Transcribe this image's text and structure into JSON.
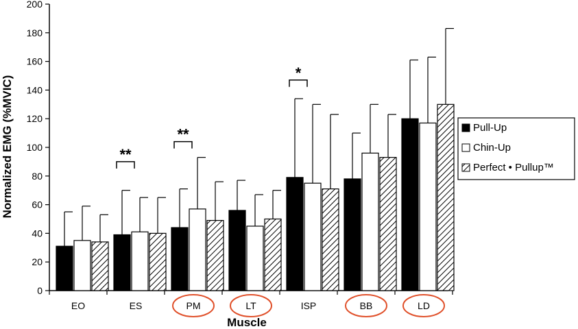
{
  "chart_data": {
    "type": "bar",
    "title": "",
    "xlabel": "Muscle",
    "ylabel": "Normalized EMG (%MVIC)",
    "ylim": [
      0,
      200
    ],
    "yticks": [
      "0",
      "20",
      "40",
      "60",
      "80",
      "100",
      "120",
      "140",
      "160",
      "180",
      "200"
    ],
    "categories": [
      "EO",
      "ES",
      "PM",
      "LT",
      "ISP",
      "BB",
      "LD"
    ],
    "highlighted_categories": [
      "PM",
      "LT",
      "BB",
      "LD"
    ],
    "highlight_color": "#e0502a",
    "series": [
      {
        "name": "Pull-Up",
        "fill": "solid-black",
        "values": [
          31,
          39,
          44,
          56,
          79,
          78,
          120
        ],
        "error": [
          24,
          31,
          27,
          21,
          55,
          32,
          41
        ]
      },
      {
        "name": "Chin-Up",
        "fill": "white",
        "values": [
          35,
          41,
          57,
          45,
          75,
          96,
          117
        ],
        "error": [
          24,
          24,
          36,
          22,
          55,
          34,
          46
        ]
      },
      {
        "name": "Perfect • Pullup™",
        "fill": "diagonal-hatch",
        "values": [
          34,
          40,
          49,
          50,
          71,
          93,
          130
        ],
        "error": [
          19,
          25,
          27,
          20,
          52,
          30,
          53
        ]
      }
    ],
    "significance": [
      {
        "category": "ES",
        "label": "**",
        "bracket_y": 90
      },
      {
        "category": "PM",
        "label": "**",
        "bracket_y": 104
      },
      {
        "category": "ISP",
        "label": "*",
        "bracket_y": 147
      }
    ],
    "legend": {
      "placement": "right"
    },
    "grid": false
  }
}
